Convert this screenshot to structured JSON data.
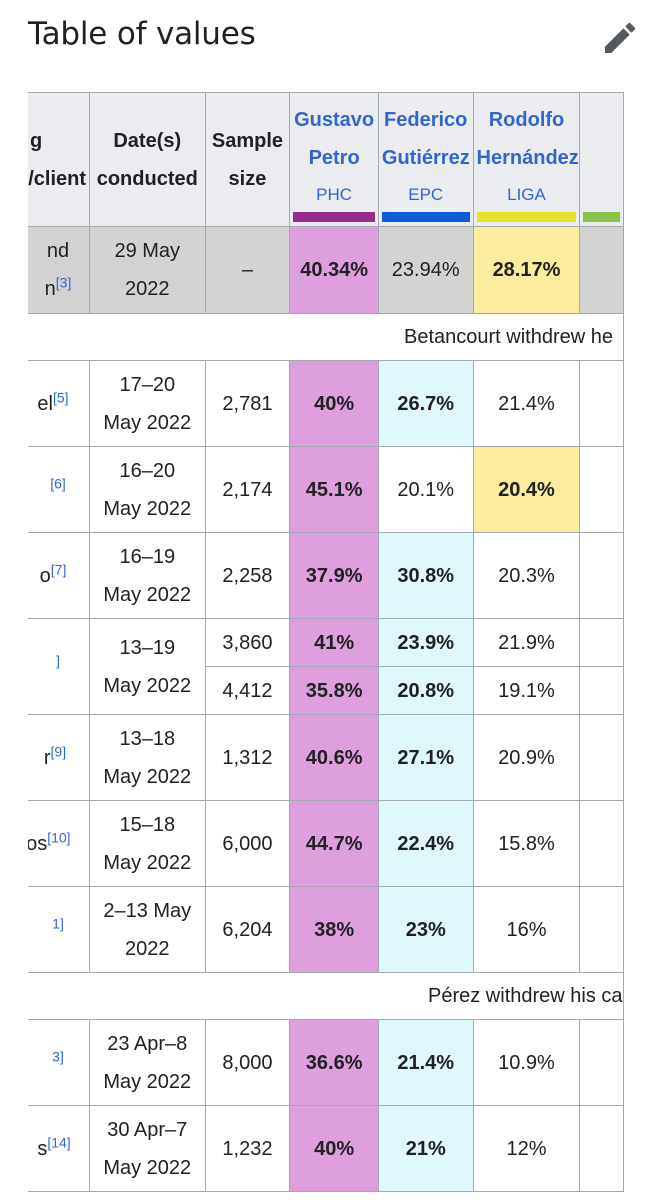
{
  "header": {
    "title": "Table of values",
    "edit_icon": "pencil-icon"
  },
  "colors": {
    "petro_fill": "#dda0dd",
    "gutierrez_fill": "#e0f7fb",
    "hernandez_lead_fill": "#fcec9e",
    "phc_bar": "#962c8e",
    "epc_bar": "#0b5ed7",
    "liga_bar": "#e3e32a",
    "header_bg": "#eaecf0",
    "result_row_bg": "#d3d3d3",
    "link": "#3366cc"
  },
  "table": {
    "headers": {
      "pollster_partial": "g",
      "pollster_partial2": "n/client",
      "dates_1": "Date(s)",
      "dates_2": "conducted",
      "sample_1": "Sample",
      "sample_2": "size",
      "candidates": [
        {
          "first": "Gustavo",
          "last": "Petro",
          "party": "PHC"
        },
        {
          "first": "Federico",
          "last": "Gutiérrez",
          "party": "EPC"
        },
        {
          "first": "Rodolfo",
          "last": "Hernández",
          "party": "LIGA"
        }
      ]
    },
    "result_row": {
      "pollster_1": "nd",
      "pollster_2": "n",
      "ref": "[3]",
      "date_1": "29 May",
      "date_2": "2022",
      "sample": "–",
      "petro": "40.34%",
      "gutierrez": "23.94%",
      "hernandez": "28.17%"
    },
    "notes": {
      "betancourt": "Betancourt withdrew he",
      "perez": "Pérez withdrew his ca"
    },
    "rows": [
      {
        "pollster": "el",
        "ref": "[5]",
        "date_1": "17–20",
        "date_2": "May 2022",
        "sample": "2,781",
        "petro": "40%",
        "gutierrez": "26.7%",
        "hernandez": "21.4%"
      },
      {
        "pollster": "",
        "ref": "[6]",
        "date_1": "16–20",
        "date_2": "May 2022",
        "sample": "2,174",
        "petro": "45.1%",
        "gutierrez": "20.1%",
        "hernandez": "20.4%"
      },
      {
        "pollster": "o",
        "ref": "[7]",
        "date_1": "16–19",
        "date_2": "May 2022",
        "sample": "2,258",
        "petro": "37.9%",
        "gutierrez": "30.8%",
        "hernandez": "20.3%"
      },
      {
        "pollster": "",
        "ref": "]",
        "date_1": "13–19",
        "date_2": "May 2022",
        "sample": "3,860",
        "petro": "41%",
        "gutierrez": "23.9%",
        "hernandez": "21.9%",
        "sub": {
          "sample": "4,412",
          "petro": "35.8%",
          "gutierrez": "20.8%",
          "hernandez": "19.1%"
        }
      },
      {
        "pollster": "r",
        "ref": "[9]",
        "date_1": "13–18",
        "date_2": "May 2022",
        "sample": "1,312",
        "petro": "40.6%",
        "gutierrez": "27.1%",
        "hernandez": "20.9%"
      },
      {
        "pollster": "ros",
        "ref": "[10]",
        "date_1": "15–18",
        "date_2": "May 2022",
        "sample": "6,000",
        "petro": "44.7%",
        "gutierrez": "22.4%",
        "hernandez": "15.8%"
      },
      {
        "pollster": "",
        "ref": "1]",
        "date_1": "2–13 May",
        "date_2": "2022",
        "sample": "6,204",
        "petro": "38%",
        "gutierrez": "23%",
        "hernandez": "16%"
      },
      {
        "pollster": "",
        "ref": "3]",
        "date_1": "23 Apr–8",
        "date_2": "May 2022",
        "sample": "8,000",
        "petro": "36.6%",
        "gutierrez": "21.4%",
        "hernandez": "10.9%"
      },
      {
        "pollster": "s",
        "ref": "[14]",
        "date_1": "30 Apr–7",
        "date_2": "May 2022",
        "sample": "1,232",
        "petro": "40%",
        "gutierrez": "21%",
        "hernandez": "12%"
      }
    ]
  }
}
